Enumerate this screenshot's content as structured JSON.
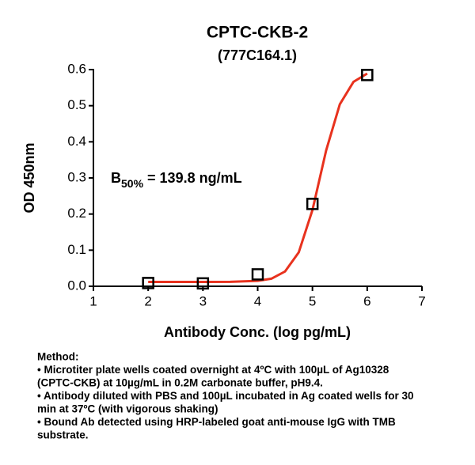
{
  "chart_data": {
    "type": "scatter",
    "title": "CPTC-CKB-2",
    "subtitle": "(777C164.1)",
    "x_label": "Antibody Conc. (log pg/mL)",
    "y_label": "OD 450nm",
    "annotation": {
      "text": "B",
      "subscript": "50%",
      "rest": "= 139.8 ng/mL"
    },
    "points": {
      "x": [
        2,
        3,
        4,
        5,
        6
      ],
      "values": [
        0.009,
        0.008,
        0.033,
        0.228,
        0.585
      ],
      "color": "#000000"
    },
    "fit": {
      "x": [
        2,
        2.5,
        3,
        3.5,
        4,
        4.25,
        4.5,
        4.75,
        5,
        5.25,
        5.5,
        5.75,
        6
      ],
      "values": [
        0.012,
        0.012,
        0.012,
        0.0123,
        0.015,
        0.021,
        0.041,
        0.094,
        0.211,
        0.376,
        0.504,
        0.566,
        0.589
      ],
      "color": "#e8321e"
    },
    "xlim": [
      1,
      7
    ],
    "xticks": [
      1,
      2,
      3,
      4,
      5,
      6,
      7
    ],
    "ylim": [
      0,
      0.6
    ],
    "yticks": [
      {
        "value": 0,
        "label": "0.0"
      },
      0.1,
      0.2,
      0.3,
      0.4,
      0.5,
      0.6
    ],
    "notes": [
      "Method:",
      "• Microtiter plate wells coated overnight at 4ºC  with 100µL of Ag10328",
      "(CPTC-CKB) at 10µg/mL in 0.2M carbonate buffer, pH9.4.",
      "• Antibody diluted with PBS and 100µL incubated in Ag coated wells for 30",
      "min at 37ºC (with vigorous shaking)",
      "• Bound Ab detected using HRP-labeled goat anti-mouse IgG with TMB",
      "substrate."
    ]
  }
}
